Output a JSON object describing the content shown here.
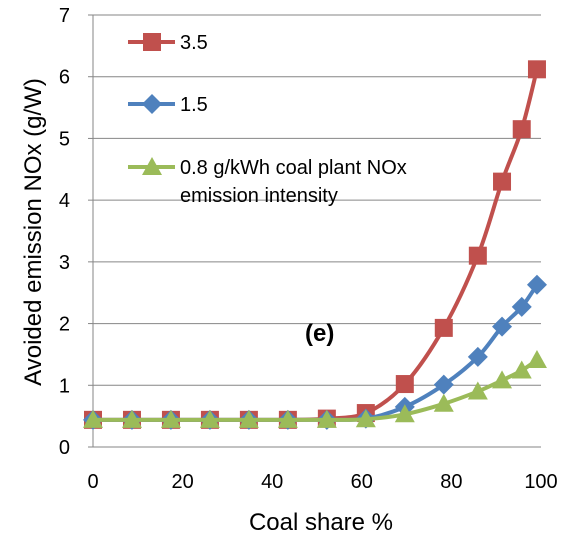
{
  "chart_data": {
    "type": "line",
    "title": "",
    "annotation": "(e)",
    "xlabel": "Coal share %",
    "ylabel": "Avoided emission NOx (g/W)",
    "xlim": [
      0,
      100
    ],
    "ylim": [
      0,
      7
    ],
    "x_ticks": [
      "0",
      "20",
      "40",
      "60",
      "80",
      "100"
    ],
    "y_ticks": [
      "0",
      "1",
      "2",
      "3",
      "4",
      "5",
      "6",
      "7"
    ],
    "grid": "horizontal",
    "legend_position": "top-left",
    "x": [
      0,
      8.7,
      17.4,
      26.1,
      34.8,
      43.5,
      52.2,
      60.9,
      69.6,
      78.3,
      85.9,
      91.3,
      95.7,
      99.1
    ],
    "series": [
      {
        "name": "3.5",
        "color": "#c0504d",
        "marker": "square",
        "values": [
          0.44,
          0.44,
          0.44,
          0.44,
          0.44,
          0.44,
          0.46,
          0.55,
          1.02,
          1.93,
          3.1,
          4.3,
          5.15,
          6.12
        ]
      },
      {
        "name": "1.5",
        "color": "#4f81bd",
        "marker": "diamond",
        "values": [
          0.44,
          0.44,
          0.44,
          0.44,
          0.44,
          0.44,
          0.44,
          0.46,
          0.65,
          1.01,
          1.46,
          1.95,
          2.27,
          2.63
        ]
      },
      {
        "name": "0.8  g/kWh coal plant NOx emission intensity",
        "legend_lines": [
          "0.8  g/kWh coal plant NOx",
          "emission intensity"
        ],
        "color": "#9bbb59",
        "marker": "triangle",
        "values": [
          0.44,
          0.44,
          0.44,
          0.44,
          0.44,
          0.44,
          0.44,
          0.45,
          0.53,
          0.7,
          0.9,
          1.08,
          1.24,
          1.41
        ]
      }
    ]
  }
}
